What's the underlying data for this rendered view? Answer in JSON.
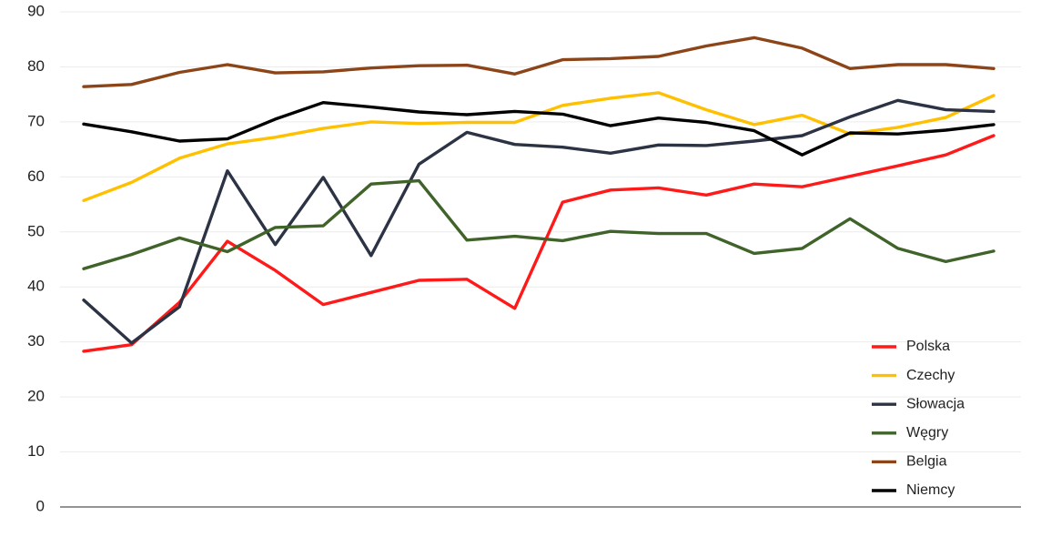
{
  "chart_data": {
    "type": "line",
    "title": "",
    "xlabel": "",
    "ylabel": "",
    "ylim": [
      0,
      90
    ],
    "yticks": [
      0,
      10,
      20,
      30,
      40,
      50,
      60,
      70,
      80,
      90
    ],
    "grid": true,
    "legend_position": "bottom-right",
    "x": [
      1,
      2,
      3,
      4,
      5,
      6,
      7,
      8,
      9,
      10,
      11,
      12,
      13,
      14,
      15,
      16,
      17,
      18,
      19,
      20
    ],
    "series": [
      {
        "name": "Polska",
        "color": "#ff1a1a",
        "values": [
          28.3,
          29.5,
          37.2,
          48.3,
          43.0,
          36.8,
          39.0,
          41.2,
          41.4,
          36.1,
          55.4,
          57.6,
          58.0,
          56.7,
          58.7,
          58.2,
          60.1,
          62.0,
          64.0,
          67.5
        ]
      },
      {
        "name": "Czechy",
        "color": "#ffc000",
        "values": [
          55.7,
          59.0,
          63.4,
          66.0,
          67.2,
          68.8,
          70.0,
          69.7,
          69.9,
          69.9,
          73.0,
          74.3,
          75.3,
          72.2,
          69.5,
          71.2,
          67.8,
          69.0,
          70.8,
          74.8
        ]
      },
      {
        "name": "Słowacja",
        "color": "#2b3344",
        "values": [
          37.6,
          29.8,
          36.4,
          61.1,
          47.7,
          59.9,
          45.7,
          62.3,
          68.1,
          65.9,
          65.4,
          64.3,
          65.8,
          65.7,
          66.5,
          67.5,
          70.9,
          73.9,
          72.2,
          71.9
        ]
      },
      {
        "name": "Węgry",
        "color": "#3f6329",
        "values": [
          43.3,
          45.9,
          48.9,
          46.4,
          50.8,
          51.1,
          58.7,
          59.3,
          48.5,
          49.2,
          48.4,
          50.1,
          49.7,
          49.7,
          46.1,
          47.0,
          52.4,
          47.0,
          44.6,
          46.5
        ]
      },
      {
        "name": "Belgia",
        "color": "#8c4519",
        "values": [
          76.4,
          76.8,
          79.0,
          80.4,
          78.9,
          79.1,
          79.8,
          80.2,
          80.3,
          78.7,
          81.3,
          81.5,
          81.9,
          83.8,
          85.3,
          83.4,
          79.7,
          80.4,
          80.4,
          79.7
        ]
      },
      {
        "name": "Niemcy",
        "color": "#000000",
        "values": [
          69.6,
          68.2,
          66.5,
          66.9,
          70.5,
          73.5,
          72.7,
          71.8,
          71.3,
          71.9,
          71.4,
          69.3,
          70.7,
          69.9,
          68.4,
          64.0,
          68.0,
          67.8,
          68.5,
          69.5
        ]
      }
    ]
  }
}
